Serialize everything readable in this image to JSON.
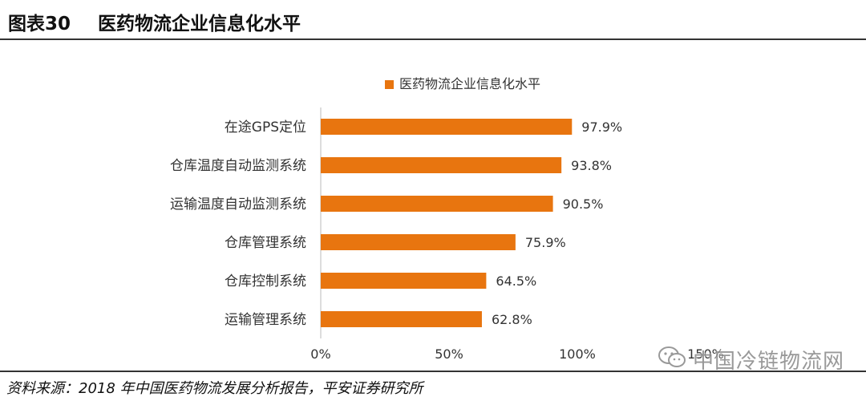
{
  "header": {
    "figure_number": "图表30",
    "figure_title": "医药物流企业信息化水平"
  },
  "chart_data": {
    "type": "bar",
    "orientation": "horizontal",
    "legend": "医药物流企业信息化水平",
    "legend_position": "top",
    "categories": [
      "在途GPS定位",
      "仓库温度自动监测系统",
      "运输温度自动监测系统",
      "仓库管理系统",
      "仓库控制系统",
      "运输管理系统"
    ],
    "values": [
      97.9,
      93.8,
      90.5,
      75.9,
      64.5,
      62.8
    ],
    "value_labels": [
      "97.9%",
      "93.8%",
      "90.5%",
      "75.9%",
      "64.5%",
      "62.8%"
    ],
    "xlim": [
      0,
      150
    ],
    "xticks": [
      0,
      50,
      100,
      150
    ],
    "xtick_labels": [
      "0%",
      "50%",
      "100%",
      "150%"
    ],
    "grid": false,
    "bar_color": "#E8750F"
  },
  "footer": {
    "source": "资料来源：2018 年中国医药物流发展分析报告，平安证券研究所"
  },
  "watermark": {
    "text": "中国冷链物流网",
    "icon": "wechat-icon"
  }
}
